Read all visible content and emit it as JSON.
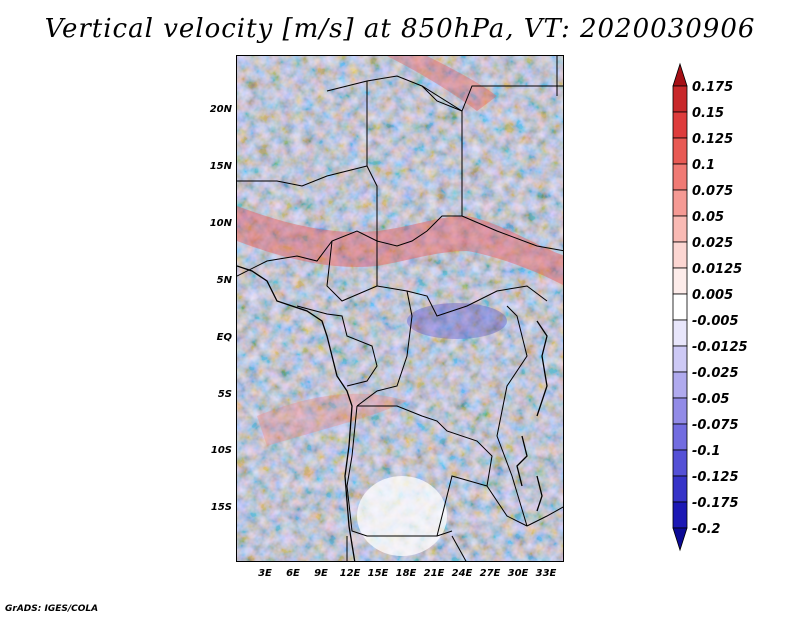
{
  "title": "Vertical velocity [m/s] at 850hPa, VT: 2020030906",
  "map": {
    "y_labels": [
      "20N",
      "15N",
      "10N",
      "5N",
      "EQ",
      "5S",
      "10S",
      "15S"
    ],
    "x_labels": [
      "3E",
      "6E",
      "9E",
      "12E",
      "15E",
      "18E",
      "21E",
      "24E",
      "27E",
      "30E",
      "33E"
    ]
  },
  "colorbar": {
    "levels": [
      "0.175",
      "0.15",
      "0.125",
      "0.1",
      "0.075",
      "0.05",
      "0.025",
      "0.0125",
      "0.005",
      "-0.005",
      "-0.0125",
      "-0.025",
      "-0.05",
      "-0.075",
      "-0.1",
      "-0.125",
      "-0.175",
      "-0.2"
    ],
    "colors": [
      "#a50f15",
      "#c8282a",
      "#de3c3c",
      "#e85a54",
      "#f07a74",
      "#f59a94",
      "#f9bab4",
      "#fcd6d2",
      "#fdecea",
      "#ffffff",
      "#e8e6fb",
      "#cdc9f5",
      "#b0aaee",
      "#928be7",
      "#726ce0",
      "#5450d6",
      "#3633c8",
      "#1c18b4",
      "#0c0a96"
    ]
  },
  "credit": "GrADS: IGES/COLA"
}
